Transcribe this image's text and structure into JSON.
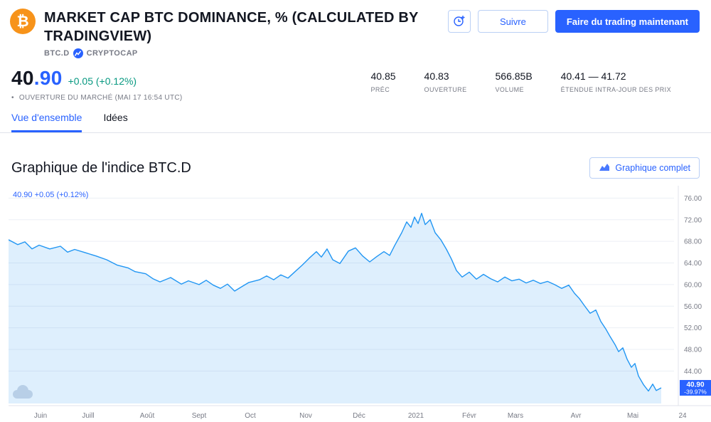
{
  "header": {
    "title": "MARKET CAP BTC DOMINANCE, % (CALCULATED BY TRADINGVIEW)",
    "symbol": "BTC.D",
    "exchange": "CRYPTOCAP",
    "follow_label": "Suivre",
    "trade_label": "Faire du trading maintenant"
  },
  "quote": {
    "price_int": "40",
    "price_dec": ".90",
    "change": "+0.05 (+0.12%)",
    "market_status": "OUVERTURE DU MARCHÉ",
    "market_time": "(MAI 17 16:54 UTC)",
    "stats": [
      {
        "value": "40.85",
        "label": "PRÉC"
      },
      {
        "value": "40.83",
        "label": "OUVERTURE"
      },
      {
        "value": "566.85B",
        "label": "VOLUME"
      },
      {
        "value": "40.41 — 41.72",
        "label": "ÉTENDUE INTRA-JOUR DES PRIX"
      }
    ]
  },
  "tabs": [
    {
      "label": "Vue d'ensemble",
      "active": true
    },
    {
      "label": "Idées",
      "active": false
    }
  ],
  "section": {
    "title": "Graphique de l'indice BTC.D",
    "full_chart_label": "Graphique complet"
  },
  "chart_data": {
    "type": "area",
    "title": "BTC.D Bitcoin dominance %, June 2020 - May 17 2021",
    "overlay_label": "40.90 +0.05 (+0.12%)",
    "last_price": "40.90",
    "period_change": "-39.97%",
    "ylim": [
      38,
      77.5
    ],
    "y_ticks": [
      76,
      72,
      68,
      64,
      60,
      56,
      52,
      48,
      44
    ],
    "x_ticks": [
      {
        "label": "Juin",
        "x": 45
      },
      {
        "label": "Juill",
        "x": 112
      },
      {
        "label": "Août",
        "x": 195
      },
      {
        "label": "Sept",
        "x": 268
      },
      {
        "label": "Oct",
        "x": 340
      },
      {
        "label": "Nov",
        "x": 418
      },
      {
        "label": "Déc",
        "x": 493
      },
      {
        "label": "2021",
        "x": 573
      },
      {
        "label": "Févr",
        "x": 648
      },
      {
        "label": "Mars",
        "x": 713
      },
      {
        "label": "Avr",
        "x": 798
      },
      {
        "label": "Mai",
        "x": 878
      },
      {
        "label": "24",
        "x": 948
      }
    ],
    "points": [
      [
        0,
        68.3
      ],
      [
        13,
        67.4
      ],
      [
        23,
        67.9
      ],
      [
        33,
        66.6
      ],
      [
        43,
        67.3
      ],
      [
        58,
        66.6
      ],
      [
        73,
        67.1
      ],
      [
        83,
        66.0
      ],
      [
        93,
        66.5
      ],
      [
        108,
        65.9
      ],
      [
        123,
        65.3
      ],
      [
        138,
        64.6
      ],
      [
        153,
        63.6
      ],
      [
        168,
        63.1
      ],
      [
        178,
        62.4
      ],
      [
        193,
        62.0
      ],
      [
        203,
        61.1
      ],
      [
        213,
        60.5
      ],
      [
        228,
        61.3
      ],
      [
        243,
        60.1
      ],
      [
        253,
        60.7
      ],
      [
        268,
        60.0
      ],
      [
        278,
        60.8
      ],
      [
        288,
        59.9
      ],
      [
        298,
        59.3
      ],
      [
        308,
        60.1
      ],
      [
        318,
        58.8
      ],
      [
        328,
        59.6
      ],
      [
        338,
        60.4
      ],
      [
        353,
        60.9
      ],
      [
        363,
        61.6
      ],
      [
        373,
        60.9
      ],
      [
        383,
        61.8
      ],
      [
        393,
        61.2
      ],
      [
        403,
        62.4
      ],
      [
        413,
        63.6
      ],
      [
        423,
        64.9
      ],
      [
        433,
        66.1
      ],
      [
        440,
        65.1
      ],
      [
        448,
        66.6
      ],
      [
        456,
        64.6
      ],
      [
        466,
        63.9
      ],
      [
        478,
        66.2
      ],
      [
        488,
        66.8
      ],
      [
        498,
        65.3
      ],
      [
        508,
        64.2
      ],
      [
        518,
        65.2
      ],
      [
        528,
        66.1
      ],
      [
        536,
        65.4
      ],
      [
        543,
        67.2
      ],
      [
        553,
        69.6
      ],
      [
        560,
        71.6
      ],
      [
        566,
        70.6
      ],
      [
        571,
        72.5
      ],
      [
        576,
        71.3
      ],
      [
        581,
        73.2
      ],
      [
        586,
        71.1
      ],
      [
        593,
        72.0
      ],
      [
        600,
        69.6
      ],
      [
        608,
        68.3
      ],
      [
        616,
        66.5
      ],
      [
        623,
        64.7
      ],
      [
        630,
        62.6
      ],
      [
        638,
        61.4
      ],
      [
        648,
        62.3
      ],
      [
        658,
        61.0
      ],
      [
        668,
        61.9
      ],
      [
        678,
        61.1
      ],
      [
        688,
        60.5
      ],
      [
        698,
        61.4
      ],
      [
        708,
        60.7
      ],
      [
        718,
        61.0
      ],
      [
        728,
        60.3
      ],
      [
        738,
        60.8
      ],
      [
        748,
        60.2
      ],
      [
        758,
        60.6
      ],
      [
        768,
        60.0
      ],
      [
        778,
        59.3
      ],
      [
        788,
        59.9
      ],
      [
        796,
        58.4
      ],
      [
        803,
        57.4
      ],
      [
        810,
        56.1
      ],
      [
        818,
        54.7
      ],
      [
        826,
        55.3
      ],
      [
        833,
        53.2
      ],
      [
        840,
        51.8
      ],
      [
        846,
        50.4
      ],
      [
        853,
        48.9
      ],
      [
        858,
        47.6
      ],
      [
        864,
        48.3
      ],
      [
        870,
        46.2
      ],
      [
        876,
        44.7
      ],
      [
        881,
        45.4
      ],
      [
        886,
        43.1
      ],
      [
        893,
        41.5
      ],
      [
        900,
        40.3
      ],
      [
        906,
        41.6
      ],
      [
        911,
        40.4
      ],
      [
        918,
        40.9
      ]
    ],
    "colors": {
      "line": "#2196f3",
      "fill": "rgba(33,150,243,0.15)",
      "badge": "#2962ff",
      "grid": "#eceff5",
      "axis_line": "#e0e3eb",
      "axis_text": "#787b86",
      "overlay": "#2962ff",
      "watermark": "#b8cfe7"
    }
  }
}
